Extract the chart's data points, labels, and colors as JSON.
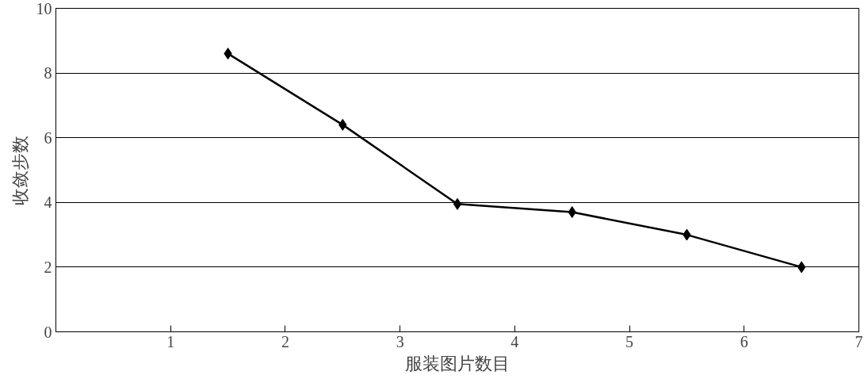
{
  "chart_data": {
    "type": "line",
    "xlabel": "服装图片数目",
    "ylabel": "收敛步数",
    "x": [
      1.5,
      2.5,
      3.5,
      4.5,
      5.5,
      6.5
    ],
    "series": [
      {
        "color": "#000000",
        "values": [
          8.6,
          6.4,
          3.95,
          3.7,
          3.0,
          2.0
        ]
      }
    ],
    "xlim": [
      0,
      7
    ],
    "xticks": [
      1,
      2,
      3,
      4,
      5,
      6,
      7
    ],
    "ylim": [
      0,
      10
    ],
    "yticks": [
      0,
      2,
      4,
      6,
      8,
      10
    ],
    "grid": "y",
    "marker": "diamond",
    "line_style": "solid"
  }
}
